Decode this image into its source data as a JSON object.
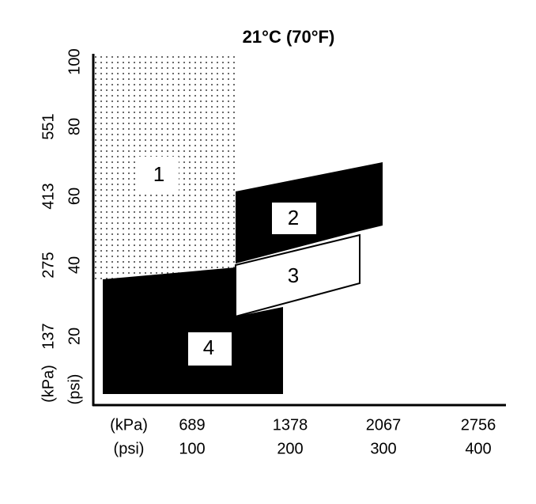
{
  "title": "21°C (70°F)",
  "y_axis": {
    "kpa": [
      "551",
      "413",
      "275",
      "137",
      "(kPa)"
    ],
    "psi": [
      "100",
      "80",
      "60",
      "40",
      "20",
      "(psi)"
    ]
  },
  "x_axis": {
    "kpa": [
      "(kPa)",
      "689",
      "1378",
      "2067",
      "2756"
    ],
    "psi": [
      "(psi)",
      "100",
      "200",
      "300",
      "400"
    ]
  },
  "regions": [
    {
      "label": "1"
    },
    {
      "label": "2"
    },
    {
      "label": "3"
    },
    {
      "label": "4"
    }
  ]
}
